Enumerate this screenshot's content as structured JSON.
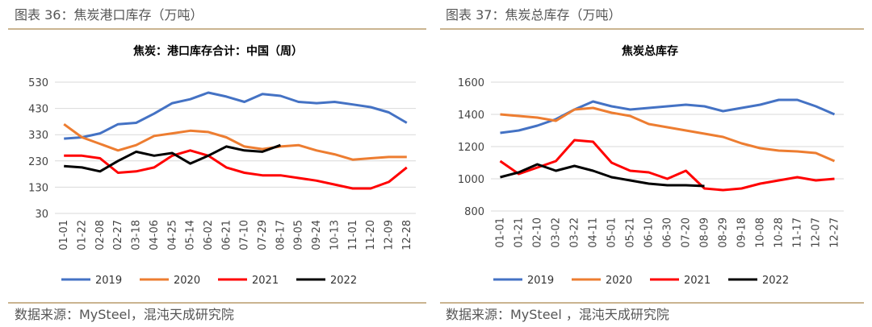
{
  "panels": [
    {
      "caption": "图表 36：焦炭港口库存（万吨）",
      "source": "数据来源：MySteel，混沌天成研究院"
    },
    {
      "caption": "图表 37：焦炭总库存（万吨）",
      "source": "数据来源：MySteel ，混沌天成研究院"
    }
  ],
  "chart_data": [
    {
      "type": "line",
      "title": "焦炭：港口库存合计：中国（周）",
      "categories": [
        "01-01",
        "01-22",
        "02-08",
        "02-27",
        "03-18",
        "04-06",
        "04-25",
        "05-14",
        "06-02",
        "06-21",
        "07-10",
        "07-29",
        "08-17",
        "09-05",
        "09-24",
        "10-13",
        "11-01",
        "11-20",
        "12-09",
        "12-28"
      ],
      "ylim": [
        30,
        530
      ],
      "yticks": [
        30,
        130,
        230,
        330,
        430,
        530
      ],
      "grid": true,
      "legend": "bottom",
      "series": [
        {
          "name": "2019",
          "color": "#4472c4",
          "values": [
            315,
            320,
            335,
            370,
            375,
            410,
            450,
            465,
            490,
            475,
            455,
            485,
            478,
            455,
            450,
            455,
            445,
            435,
            415,
            375
          ]
        },
        {
          "name": "2020",
          "color": "#ed7d31",
          "values": [
            370,
            320,
            295,
            270,
            290,
            325,
            335,
            345,
            340,
            320,
            285,
            275,
            285,
            290,
            270,
            255,
            235,
            240,
            245,
            245
          ]
        },
        {
          "name": "2021",
          "color": "#ff0000",
          "values": [
            250,
            250,
            240,
            185,
            190,
            205,
            250,
            270,
            250,
            205,
            185,
            175,
            175,
            165,
            155,
            140,
            125,
            125,
            150,
            205
          ]
        },
        {
          "name": "2022",
          "color": "#000000",
          "values": [
            210,
            205,
            190,
            230,
            265,
            250,
            260,
            220,
            250,
            285,
            270,
            265,
            290,
            null,
            null,
            null,
            null,
            null,
            null,
            null
          ]
        }
      ]
    },
    {
      "type": "line",
      "title": "焦炭总库存",
      "categories": [
        "01-01",
        "01-21",
        "02-10",
        "03-02",
        "03-22",
        "04-11",
        "05-01",
        "05-21",
        "06-10",
        "06-30",
        "07-20",
        "08-09",
        "08-29",
        "09-18",
        "10-08",
        "10-28",
        "11-17",
        "12-07",
        "12-27"
      ],
      "ylim": [
        800,
        1600
      ],
      "yticks": [
        800,
        1000,
        1200,
        1400,
        1600
      ],
      "grid": true,
      "legend": "bottom",
      "series": [
        {
          "name": "2019",
          "color": "#4472c4",
          "values": [
            1285,
            1300,
            1330,
            1370,
            1430,
            1480,
            1450,
            1430,
            1440,
            1450,
            1460,
            1450,
            1420,
            1440,
            1460,
            1490,
            1490,
            1450,
            1400
          ]
        },
        {
          "name": "2020",
          "color": "#ed7d31",
          "values": [
            1400,
            1390,
            1380,
            1360,
            1430,
            1440,
            1410,
            1390,
            1340,
            1320,
            1300,
            1280,
            1260,
            1220,
            1190,
            1175,
            1170,
            1160,
            1110
          ]
        },
        {
          "name": "2021",
          "color": "#ff0000",
          "values": [
            1110,
            1030,
            1070,
            1110,
            1240,
            1230,
            1100,
            1050,
            1040,
            1000,
            1050,
            940,
            930,
            940,
            970,
            990,
            1010,
            990,
            1000
          ]
        },
        {
          "name": "2022",
          "color": "#000000",
          "values": [
            1010,
            1040,
            1090,
            1050,
            1080,
            1050,
            1010,
            990,
            970,
            960,
            960,
            955,
            null,
            null,
            null,
            null,
            null,
            null,
            null
          ]
        }
      ]
    }
  ]
}
